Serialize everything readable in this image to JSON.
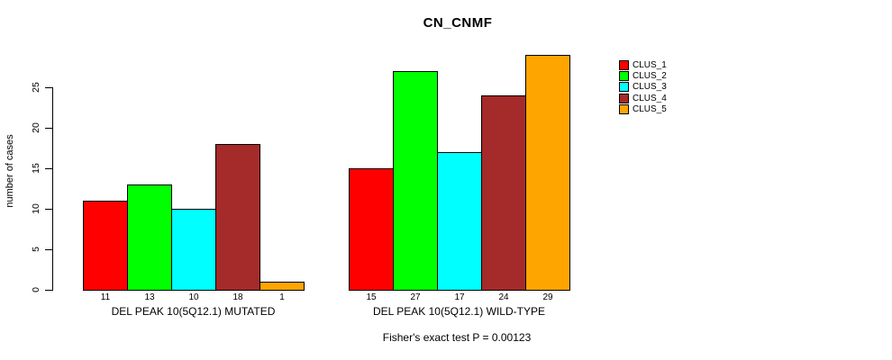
{
  "title": "CN_CNMF",
  "caption": "Fisher's exact test P = 0.00123",
  "y_axis": {
    "label": "number of cases",
    "ticks": [
      "0",
      "5",
      "10",
      "15",
      "20",
      "25"
    ]
  },
  "legend": {
    "items": [
      {
        "label": "CLUS_1",
        "color": "#ff0000"
      },
      {
        "label": "CLUS_2",
        "color": "#00ff00"
      },
      {
        "label": "CLUS_3",
        "color": "#00ffff"
      },
      {
        "label": "CLUS_4",
        "color": "#a52a2a"
      },
      {
        "label": "CLUS_5",
        "color": "#ffa500"
      }
    ]
  },
  "chart_data": {
    "type": "bar",
    "title": "CN_CNMF",
    "xlabel": "",
    "ylabel": "number of cases",
    "ylim": [
      0,
      29
    ],
    "yticks": [
      0,
      5,
      10,
      15,
      20,
      25
    ],
    "grid": false,
    "legend_position": "right",
    "bar_value_labels": true,
    "annotation": "Fisher's exact test P = 0.00123",
    "categories": [
      "DEL PEAK 10(5Q12.1) MUTATED",
      "DEL PEAK 10(5Q12.1) WILD-TYPE"
    ],
    "series": [
      {
        "name": "CLUS_1",
        "color": "#ff0000",
        "values": [
          11,
          15
        ]
      },
      {
        "name": "CLUS_2",
        "color": "#00ff00",
        "values": [
          13,
          27
        ]
      },
      {
        "name": "CLUS_3",
        "color": "#00ffff",
        "values": [
          10,
          17
        ]
      },
      {
        "name": "CLUS_4",
        "color": "#a52a2a",
        "values": [
          18,
          24
        ]
      },
      {
        "name": "CLUS_5",
        "color": "#ffa500",
        "values": [
          1,
          29
        ]
      }
    ]
  }
}
